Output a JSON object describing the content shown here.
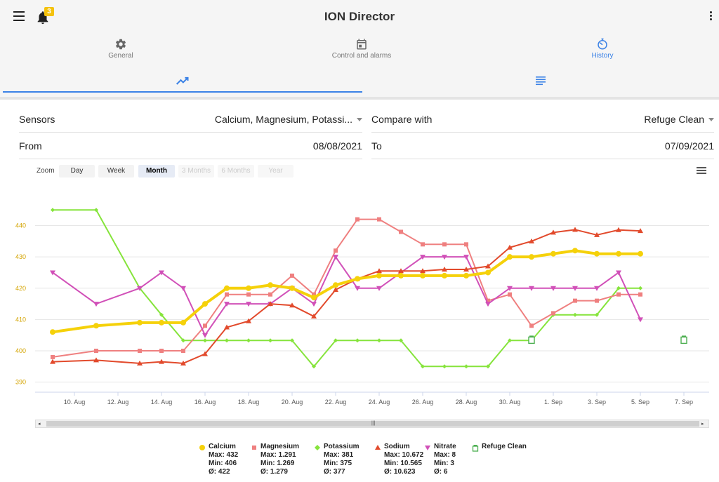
{
  "app": {
    "title": "ION Director",
    "notification_count": "3"
  },
  "top_tabs": [
    {
      "label": "General",
      "icon": "gear-icon"
    },
    {
      "label": "Control and alarms",
      "icon": "calendar-icon"
    },
    {
      "label": "History",
      "icon": "timer-icon"
    }
  ],
  "sub_tabs": [
    {
      "icon": "trending-up-icon",
      "active": true
    },
    {
      "icon": "list-icon",
      "active": false
    }
  ],
  "form": {
    "sensors_label": "Sensors",
    "sensors_value": "Calcium, Magnesium, Potassi...",
    "compare_label": "Compare with",
    "compare_value": "Refuge Clean",
    "from_label": "From",
    "from_value": "08/08/2021",
    "to_label": "To",
    "to_value": "07/09/2021"
  },
  "zoom": {
    "label": "Zoom",
    "buttons": [
      {
        "label": "Day",
        "state": "normal"
      },
      {
        "label": "Week",
        "state": "normal"
      },
      {
        "label": "Month",
        "state": "active"
      },
      {
        "label": "3 Months",
        "state": "disabled"
      },
      {
        "label": "6 Months",
        "state": "disabled"
      },
      {
        "label": "Year",
        "state": "disabled"
      }
    ]
  },
  "colors": {
    "accent": "#3b82e6",
    "calcium": "#f5d10a",
    "magnesium": "#ef8080",
    "potassium": "#86e43c",
    "sodium": "#e24a2c",
    "nitrate": "#d150b8",
    "refuge": "#4caf50"
  },
  "chart_data": {
    "type": "line",
    "x_unit": "day",
    "x_range": [
      "2021-08-08",
      "2021-09-07"
    ],
    "y_range": [
      387,
      452
    ],
    "y_ticks": [
      390,
      400,
      410,
      420,
      430,
      440
    ],
    "x_ticks": [
      "10. Aug",
      "12. Aug",
      "14. Aug",
      "16. Aug",
      "18. Aug",
      "20. Aug",
      "22. Aug",
      "24. Aug",
      "26. Aug",
      "28. Aug",
      "30. Aug",
      "1. Sep",
      "3. Sep",
      "5. Sep",
      "7. Sep"
    ],
    "x_tick_dates": [
      "2021-08-10",
      "2021-08-12",
      "2021-08-14",
      "2021-08-16",
      "2021-08-18",
      "2021-08-20",
      "2021-08-22",
      "2021-08-24",
      "2021-08-26",
      "2021-08-28",
      "2021-08-30",
      "2021-09-01",
      "2021-09-03",
      "2021-09-05",
      "2021-09-07"
    ],
    "series": [
      {
        "name": "Potassium",
        "marker": "diamond",
        "width": 2,
        "x": [
          "2021-08-09",
          "2021-08-11",
          "2021-08-13",
          "2021-08-14",
          "2021-08-15",
          "2021-08-16",
          "2021-08-17",
          "2021-08-18",
          "2021-08-19",
          "2021-08-20",
          "2021-08-21",
          "2021-08-22",
          "2021-08-23",
          "2021-08-24",
          "2021-08-25",
          "2021-08-26",
          "2021-08-27",
          "2021-08-28",
          "2021-08-29",
          "2021-08-30",
          "2021-08-31",
          "2021-09-01",
          "2021-09-02",
          "2021-09-03",
          "2021-09-04",
          "2021-09-05"
        ],
        "y": [
          445,
          445,
          420,
          411.5,
          403.3,
          403.3,
          403.3,
          403.3,
          403.3,
          403.3,
          395,
          403.3,
          403.3,
          403.3,
          403.3,
          395,
          395,
          395,
          395,
          403.3,
          403.3,
          411.5,
          411.5,
          411.5,
          420,
          420
        ]
      },
      {
        "name": "Magnesium",
        "marker": "square",
        "width": 2,
        "x": [
          "2021-08-09",
          "2021-08-11",
          "2021-08-13",
          "2021-08-14",
          "2021-08-15",
          "2021-08-16",
          "2021-08-17",
          "2021-08-18",
          "2021-08-19",
          "2021-08-20",
          "2021-08-21",
          "2021-08-22",
          "2021-08-23",
          "2021-08-24",
          "2021-08-25",
          "2021-08-26",
          "2021-08-27",
          "2021-08-28",
          "2021-08-29",
          "2021-08-30",
          "2021-08-31",
          "2021-09-01",
          "2021-09-02",
          "2021-09-03",
          "2021-09-04",
          "2021-09-05"
        ],
        "y": [
          398,
          400,
          400,
          400,
          400,
          408,
          418,
          418,
          418,
          424,
          418,
          432,
          442,
          442,
          438,
          434,
          434,
          434,
          416,
          418,
          408,
          412,
          416,
          416,
          418,
          418
        ]
      },
      {
        "name": "Nitrate",
        "marker": "triangle-down",
        "width": 2,
        "x": [
          "2021-08-09",
          "2021-08-11",
          "2021-08-13",
          "2021-08-14",
          "2021-08-15",
          "2021-08-16",
          "2021-08-17",
          "2021-08-18",
          "2021-08-19",
          "2021-08-20",
          "2021-08-21",
          "2021-08-22",
          "2021-08-23",
          "2021-08-24",
          "2021-08-25",
          "2021-08-26",
          "2021-08-27",
          "2021-08-28",
          "2021-08-29",
          "2021-08-30",
          "2021-08-31",
          "2021-09-01",
          "2021-09-02",
          "2021-09-03",
          "2021-09-04",
          "2021-09-05"
        ],
        "y": [
          425,
          415,
          420,
          425,
          420,
          405,
          415,
          415,
          415,
          420,
          415,
          430,
          420,
          420,
          425,
          430,
          430,
          430,
          415,
          420,
          420,
          420,
          420,
          420,
          425,
          410
        ]
      },
      {
        "name": "Sodium",
        "marker": "triangle",
        "width": 2,
        "x": [
          "2021-08-09",
          "2021-08-11",
          "2021-08-13",
          "2021-08-14",
          "2021-08-15",
          "2021-08-16",
          "2021-08-17",
          "2021-08-18",
          "2021-08-19",
          "2021-08-20",
          "2021-08-21",
          "2021-08-22",
          "2021-08-23",
          "2021-08-24",
          "2021-08-25",
          "2021-08-26",
          "2021-08-27",
          "2021-08-28",
          "2021-08-29",
          "2021-08-30",
          "2021-08-31",
          "2021-09-01",
          "2021-09-02",
          "2021-09-03",
          "2021-09-04",
          "2021-09-05"
        ],
        "y": [
          396.5,
          397,
          396,
          396.5,
          396,
          399,
          407.5,
          409.5,
          415,
          414.5,
          411,
          419.5,
          423,
          425.5,
          425.5,
          425.5,
          426,
          426,
          427,
          433,
          435,
          437.8,
          438.7,
          437,
          438.6,
          438.3
        ]
      },
      {
        "name": "Calcium",
        "marker": "circle",
        "width": 4,
        "x": [
          "2021-08-09",
          "2021-08-11",
          "2021-08-13",
          "2021-08-14",
          "2021-08-15",
          "2021-08-16",
          "2021-08-17",
          "2021-08-18",
          "2021-08-19",
          "2021-08-20",
          "2021-08-21",
          "2021-08-22",
          "2021-08-23",
          "2021-08-24",
          "2021-08-25",
          "2021-08-26",
          "2021-08-27",
          "2021-08-28",
          "2021-08-29",
          "2021-08-30",
          "2021-08-31",
          "2021-09-01",
          "2021-09-02",
          "2021-09-03",
          "2021-09-04",
          "2021-09-05"
        ],
        "y": [
          406,
          408,
          409,
          409,
          409,
          415,
          420,
          420,
          421,
          420,
          417,
          421,
          423,
          424,
          424,
          424,
          424,
          424,
          425,
          430,
          430,
          431,
          432,
          431,
          431,
          431
        ]
      }
    ],
    "refuge_points": [
      {
        "x": "2021-08-31",
        "y": 403.5
      },
      {
        "x": "2021-09-07",
        "y": 403.5
      }
    ]
  },
  "legend": [
    {
      "name": "Calcium",
      "color_key": "calcium",
      "marker": "circle",
      "stats": [
        "Max: 432",
        "Min: 406",
        "Ø: 422"
      ]
    },
    {
      "name": "Magnesium",
      "color_key": "magnesium",
      "marker": "square",
      "stats": [
        "Max: 1.291",
        "Min: 1.269",
        "Ø: 1.279"
      ]
    },
    {
      "name": "Potassium",
      "color_key": "potassium",
      "marker": "diamond",
      "stats": [
        "Max: 381",
        "Min: 375",
        "Ø: 377"
      ]
    },
    {
      "name": "Sodium",
      "color_key": "sodium",
      "marker": "triangle",
      "stats": [
        "Max: 10.672",
        "Min: 10.565",
        "Ø: 10.623"
      ]
    },
    {
      "name": "Nitrate",
      "color_key": "nitrate",
      "marker": "triangle-down",
      "stats": [
        "Max: 8",
        "Min: 3",
        "Ø: 6"
      ]
    },
    {
      "name": "Refuge Clean",
      "color_key": "refuge",
      "marker": "jar",
      "stats": []
    }
  ]
}
